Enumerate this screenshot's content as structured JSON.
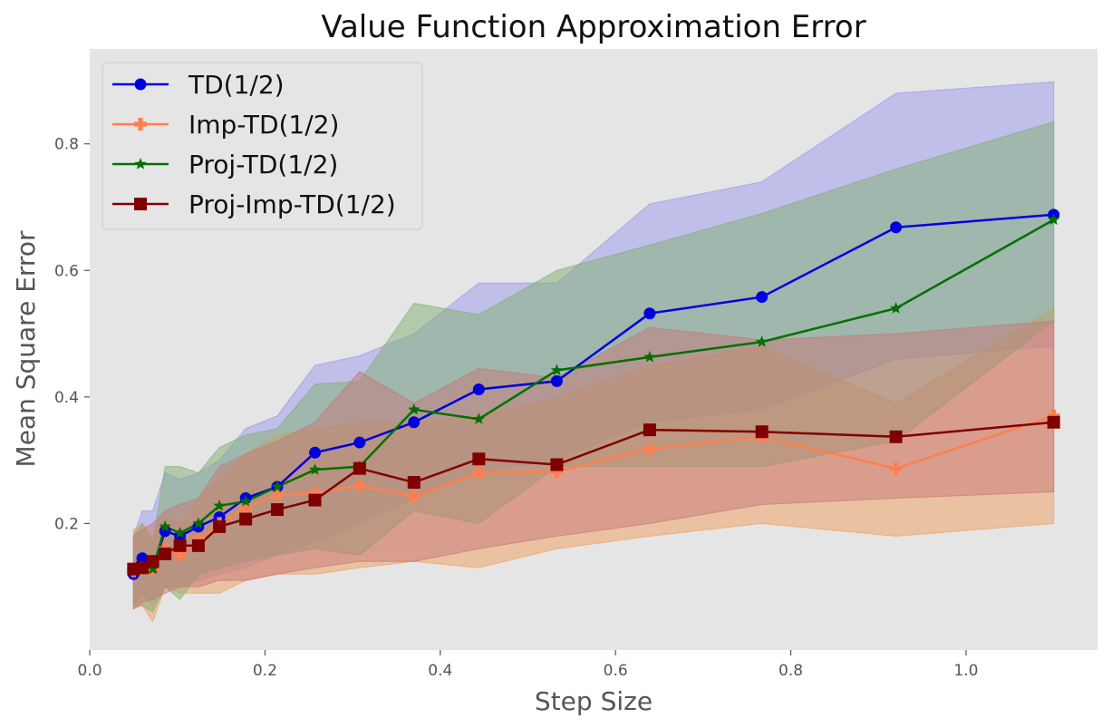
{
  "chart_data": {
    "type": "line",
    "title": "Value Function Approximation Error",
    "xlabel": "Step Size",
    "ylabel": "Mean Square Error",
    "xlim": [
      0.0,
      1.15
    ],
    "ylim": [
      0.0,
      0.95
    ],
    "xticks": [
      "0.0",
      "0.2",
      "0.4",
      "0.6",
      "0.8",
      "1.0"
    ],
    "yticks": [
      "0.2",
      "0.4",
      "0.6",
      "0.8"
    ],
    "grid": false,
    "legend_position": "top-left",
    "background": "#e5e5e5",
    "x": [
      0.05,
      0.06,
      0.072,
      0.086,
      0.103,
      0.124,
      0.148,
      0.178,
      0.214,
      0.257,
      0.308,
      0.37,
      0.444,
      0.533,
      0.639,
      0.767,
      0.92,
      1.1
    ],
    "series": [
      {
        "name": "TD(1/2)",
        "color": "#0000dd",
        "marker": "circle",
        "values": [
          0.12,
          0.145,
          0.13,
          0.188,
          0.18,
          0.195,
          0.21,
          0.24,
          0.258,
          0.312,
          0.328,
          0.36,
          0.412,
          0.425,
          0.532,
          0.558,
          0.668,
          0.688
        ],
        "band_color": "#9999ee",
        "band_upper": [
          0.18,
          0.22,
          0.22,
          0.28,
          0.27,
          0.28,
          0.3,
          0.35,
          0.37,
          0.45,
          0.465,
          0.5,
          0.58,
          0.58,
          0.705,
          0.74,
          0.88,
          0.898
        ],
        "band_lower": [
          0.07,
          0.09,
          0.07,
          0.1,
          0.1,
          0.11,
          0.12,
          0.13,
          0.15,
          0.17,
          0.2,
          0.24,
          0.28,
          0.3,
          0.36,
          0.38,
          0.46,
          0.48
        ]
      },
      {
        "name": "Imp-TD(1/2)",
        "color": "#ff7f50",
        "marker": "plus",
        "values": [
          0.125,
          0.13,
          0.128,
          0.16,
          0.15,
          0.175,
          0.2,
          0.225,
          0.245,
          0.248,
          0.26,
          0.243,
          0.28,
          0.282,
          0.318,
          0.337,
          0.287,
          0.37
        ],
        "band_color": "#f0a060",
        "band_upper": [
          0.19,
          0.2,
          0.18,
          0.21,
          0.2,
          0.24,
          0.27,
          0.31,
          0.34,
          0.35,
          0.36,
          0.36,
          0.37,
          0.4,
          0.45,
          0.48,
          0.39,
          0.54
        ],
        "band_lower": [
          0.065,
          0.07,
          0.045,
          0.1,
          0.09,
          0.09,
          0.09,
          0.11,
          0.12,
          0.12,
          0.13,
          0.14,
          0.13,
          0.16,
          0.18,
          0.2,
          0.18,
          0.2
        ]
      },
      {
        "name": "Proj-TD(1/2)",
        "color": "#007000",
        "marker": "star",
        "values": [
          0.125,
          0.13,
          0.128,
          0.195,
          0.185,
          0.2,
          0.228,
          0.235,
          0.258,
          0.285,
          0.29,
          0.38,
          0.365,
          0.442,
          0.463,
          0.487,
          0.54,
          0.68
        ],
        "band_color": "#80b070",
        "band_upper": [
          0.18,
          0.2,
          0.17,
          0.29,
          0.29,
          0.28,
          0.32,
          0.34,
          0.35,
          0.42,
          0.425,
          0.548,
          0.53,
          0.6,
          0.64,
          0.69,
          0.76,
          0.835
        ],
        "band_lower": [
          0.07,
          0.07,
          0.06,
          0.1,
          0.08,
          0.12,
          0.13,
          0.14,
          0.15,
          0.16,
          0.15,
          0.22,
          0.2,
          0.29,
          0.29,
          0.29,
          0.33,
          0.52
        ]
      },
      {
        "name": "Proj-Imp-TD(1/2)",
        "color": "#800000",
        "marker": "square",
        "values": [
          0.128,
          0.13,
          0.14,
          0.152,
          0.165,
          0.165,
          0.195,
          0.207,
          0.222,
          0.237,
          0.287,
          0.265,
          0.302,
          0.293,
          0.348,
          0.345,
          0.337,
          0.36
        ],
        "band_color": "#c87878",
        "band_upper": [
          0.18,
          0.19,
          0.2,
          0.22,
          0.23,
          0.24,
          0.29,
          0.31,
          0.33,
          0.36,
          0.44,
          0.39,
          0.445,
          0.43,
          0.51,
          0.49,
          0.5,
          0.52
        ],
        "band_lower": [
          0.065,
          0.075,
          0.08,
          0.09,
          0.1,
          0.1,
          0.11,
          0.11,
          0.12,
          0.13,
          0.14,
          0.14,
          0.16,
          0.18,
          0.2,
          0.23,
          0.24,
          0.25
        ]
      }
    ]
  }
}
